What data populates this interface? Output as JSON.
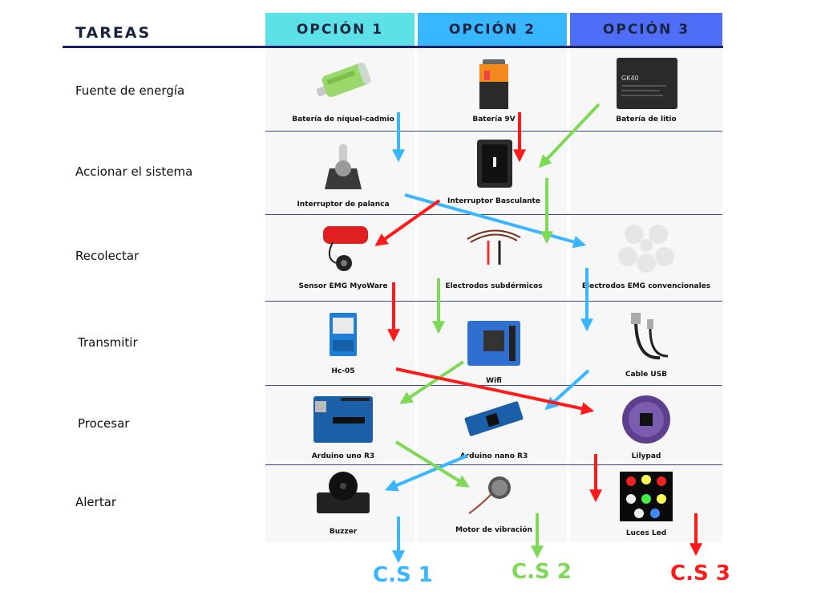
{
  "header": {
    "tasks_label": "TAREAS",
    "options": [
      "OPCIÓN 1",
      "OPCIÓN 2",
      "OPCIÓN 3"
    ]
  },
  "colors": {
    "option1": "#5ce1e6",
    "option2": "#38b6ff",
    "option3": "#4f6ef7",
    "cs1": "#38b6ff",
    "cs2": "#7ed957",
    "cs3": "#ff1a1a"
  },
  "rows": [
    {
      "task": "Fuente de energía",
      "items": [
        {
          "label": "Batería de níquel-cadmio",
          "icon": "nicd-battery-icon"
        },
        {
          "label": "Batería 9V",
          "icon": "9v-battery-icon"
        },
        {
          "label": "Batería de litio",
          "icon": "lithium-battery-icon",
          "printed_text": "GK40"
        }
      ]
    },
    {
      "task": "Accionar el sistema",
      "items": [
        {
          "label": "Interruptor de palanca",
          "icon": "toggle-switch-icon"
        },
        {
          "label": "Interruptor Basculante",
          "icon": "rocker-switch-icon"
        },
        null
      ]
    },
    {
      "task": "Recolectar",
      "items": [
        {
          "label": "Sensor EMG MyoWare",
          "icon": "emg-sensor-icon"
        },
        {
          "label": "Electrodos subdérmicos",
          "icon": "subdermal-electrodes-icon"
        },
        {
          "label": "Electrodos EMG convencionales",
          "icon": "emg-electrodes-icon"
        }
      ]
    },
    {
      "task": "Transmitir",
      "items": [
        {
          "label": "Hc-05",
          "icon": "bluetooth-module-icon"
        },
        {
          "label": "Wifi",
          "icon": "wifi-module-icon"
        },
        {
          "label": "Cable USB",
          "icon": "usb-cable-icon"
        }
      ]
    },
    {
      "task": "Procesar",
      "items": [
        {
          "label": "Arduino uno R3",
          "icon": "arduino-uno-icon"
        },
        {
          "label": "Arduino nano R3",
          "icon": "arduino-nano-icon"
        },
        {
          "label": "Lilypad",
          "icon": "lilypad-icon"
        }
      ]
    },
    {
      "task": "Alertar",
      "items": [
        {
          "label": "Buzzer",
          "icon": "buzzer-icon"
        },
        {
          "label": "Motor de vibración",
          "icon": "vibration-motor-icon"
        },
        {
          "label": "Luces Led",
          "icon": "led-lights-icon"
        }
      ]
    }
  ],
  "solutions": [
    {
      "label": "C.S 1",
      "color": "#38b6ff",
      "path": [
        "Batería de níquel-cadmio",
        "Interruptor de palanca",
        "Electrodos EMG convencionales",
        "Cable USB",
        "Arduino nano R3",
        "Buzzer"
      ]
    },
    {
      "label": "C.S 2",
      "color": "#7ed957",
      "path": [
        "Batería de litio",
        "Interruptor Basculante",
        "Electrodos subdérmicos",
        "Wifi",
        "Arduino uno R3",
        "Motor de vibración"
      ]
    },
    {
      "label": "C.S 3",
      "color": "#ff1a1a",
      "path": [
        "Batería 9V",
        "Interruptor Basculante",
        "Sensor EMG MyoWare",
        "Hc-05",
        "Lilypad",
        "Luces Led"
      ]
    }
  ]
}
